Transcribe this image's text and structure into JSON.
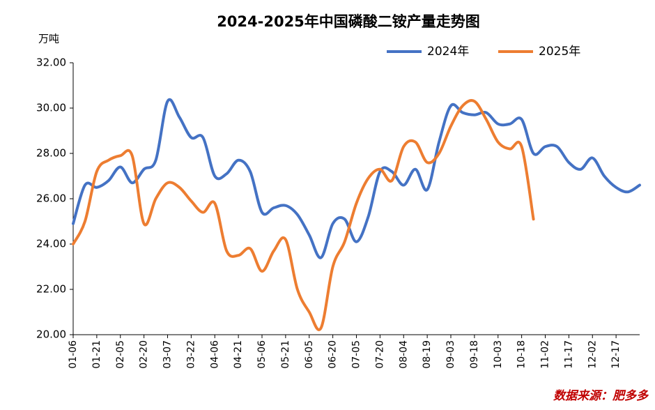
{
  "chart_data": {
    "type": "line",
    "title": "2024-2025年中国磷酸二铵产量走势图",
    "y_unit": "万吨",
    "source": "数据来源：肥多多",
    "categories": [
      "01-06",
      null,
      "01-21",
      null,
      "02-05",
      null,
      "02-20",
      null,
      "03-07",
      null,
      "03-22",
      null,
      "04-06",
      null,
      "04-21",
      null,
      "05-06",
      null,
      "05-21",
      null,
      "06-05",
      null,
      "06-20",
      null,
      "07-05",
      null,
      "07-20",
      null,
      "08-04",
      null,
      "08-19",
      null,
      "09-03",
      null,
      "09-18",
      null,
      "10-03",
      null,
      "10-18",
      null,
      "11-02",
      null,
      "11-17",
      null,
      "12-02",
      null,
      "12-17",
      null,
      null
    ],
    "series": [
      {
        "name": "2024年",
        "color": "#4472c4",
        "values": [
          24.9,
          26.6,
          26.5,
          26.8,
          27.4,
          26.7,
          27.3,
          27.7,
          30.3,
          29.6,
          28.7,
          28.7,
          27.0,
          27.1,
          27.7,
          27.2,
          25.4,
          25.6,
          25.7,
          25.3,
          24.4,
          23.4,
          24.9,
          25.1,
          24.1,
          25.2,
          27.2,
          27.2,
          26.6,
          27.3,
          26.4,
          28.5,
          30.1,
          29.8,
          29.7,
          29.8,
          29.3,
          29.3,
          29.5,
          28.0,
          28.3,
          28.3,
          27.6,
          27.3,
          27.8,
          27.0,
          26.5,
          26.3,
          26.6
        ]
      },
      {
        "name": "2025年",
        "color": "#ed7d31",
        "values": [
          24.0,
          25.0,
          27.2,
          27.7,
          27.9,
          27.9,
          24.9,
          26.0,
          26.7,
          26.5,
          25.9,
          25.4,
          25.8,
          23.7,
          23.5,
          23.8,
          22.8,
          23.7,
          24.2,
          22.0,
          21.0,
          20.3,
          23.0,
          24.1,
          25.8,
          26.9,
          27.3,
          26.8,
          28.3,
          28.5,
          27.6,
          28.0,
          29.2,
          30.1,
          30.3,
          29.5,
          28.5,
          28.2,
          28.3,
          25.1,
          null,
          null,
          null,
          null,
          null,
          null,
          null,
          null,
          null
        ]
      }
    ],
    "ylim": [
      20,
      32
    ],
    "yticks": [
      {
        "value": 20,
        "label": "20.00"
      },
      {
        "value": 22,
        "label": "22.00"
      },
      {
        "value": 24,
        "label": "24.00"
      },
      {
        "value": 26,
        "label": "26.00"
      },
      {
        "value": 28,
        "label": "28.00"
      },
      {
        "value": 30,
        "label": "30.00"
      },
      {
        "value": 32,
        "label": "32.00"
      }
    ],
    "grid": false,
    "legend": "top-right"
  }
}
